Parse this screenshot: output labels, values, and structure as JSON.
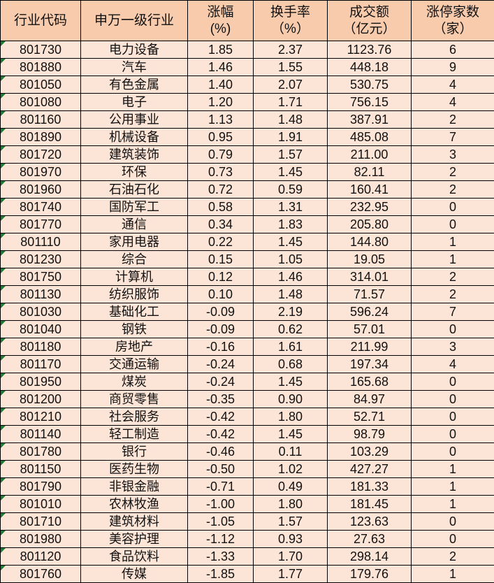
{
  "headers": [
    "行业代码",
    "申万一级行业",
    "涨幅\n(%)",
    "换手率\n（%）",
    "成交额\n（亿元）",
    "涨停家数\n（家）"
  ],
  "header_lines": [
    [
      "行业代码"
    ],
    [
      "申万一级行业"
    ],
    [
      "涨幅",
      "(%)"
    ],
    [
      "换手率",
      "（%）"
    ],
    [
      "成交额",
      "（亿元）"
    ],
    [
      "涨停家数",
      "（家）"
    ]
  ],
  "rows": [
    [
      "801730",
      "电力设备",
      "1.85",
      "2.37",
      "1123.76",
      "6"
    ],
    [
      "801880",
      "汽车",
      "1.46",
      "1.55",
      "448.18",
      "9"
    ],
    [
      "801050",
      "有色金属",
      "1.40",
      "2.07",
      "530.75",
      "4"
    ],
    [
      "801080",
      "电子",
      "1.20",
      "1.71",
      "756.15",
      "4"
    ],
    [
      "801160",
      "公用事业",
      "1.13",
      "1.48",
      "387.91",
      "2"
    ],
    [
      "801890",
      "机械设备",
      "0.95",
      "1.91",
      "485.08",
      "7"
    ],
    [
      "801720",
      "建筑装饰",
      "0.79",
      "1.57",
      "211.00",
      "3"
    ],
    [
      "801970",
      "环保",
      "0.73",
      "1.45",
      "82.11",
      "2"
    ],
    [
      "801960",
      "石油石化",
      "0.72",
      "0.59",
      "160.41",
      "2"
    ],
    [
      "801740",
      "国防军工",
      "0.58",
      "1.31",
      "232.95",
      "0"
    ],
    [
      "801770",
      "通信",
      "0.34",
      "1.83",
      "205.80",
      "0"
    ],
    [
      "801110",
      "家用电器",
      "0.22",
      "1.45",
      "144.80",
      "1"
    ],
    [
      "801230",
      "综合",
      "0.15",
      "1.05",
      "19.05",
      "1"
    ],
    [
      "801750",
      "计算机",
      "0.12",
      "1.46",
      "314.01",
      "2"
    ],
    [
      "801130",
      "纺织服饰",
      "0.10",
      "1.48",
      "71.57",
      "2"
    ],
    [
      "801030",
      "基础化工",
      "-0.09",
      "2.19",
      "596.24",
      "7"
    ],
    [
      "801040",
      "钢铁",
      "-0.09",
      "0.62",
      "57.01",
      "0"
    ],
    [
      "801180",
      "房地产",
      "-0.16",
      "1.61",
      "211.99",
      "3"
    ],
    [
      "801170",
      "交通运输",
      "-0.24",
      "0.68",
      "197.34",
      "4"
    ],
    [
      "801950",
      "煤炭",
      "-0.24",
      "1.45",
      "165.68",
      "0"
    ],
    [
      "801200",
      "商贸零售",
      "-0.35",
      "0.90",
      "84.97",
      "0"
    ],
    [
      "801210",
      "社会服务",
      "-0.42",
      "1.80",
      "52.71",
      "0"
    ],
    [
      "801140",
      "轻工制造",
      "-0.42",
      "1.45",
      "98.79",
      "0"
    ],
    [
      "801780",
      "银行",
      "-0.46",
      "0.11",
      "103.29",
      "0"
    ],
    [
      "801150",
      "医药生物",
      "-0.50",
      "1.02",
      "427.27",
      "1"
    ],
    [
      "801790",
      "非银金融",
      "-0.71",
      "0.49",
      "181.33",
      "1"
    ],
    [
      "801010",
      "农林牧渔",
      "-1.00",
      "1.80",
      "181.45",
      "1"
    ],
    [
      "801710",
      "建筑材料",
      "-1.05",
      "1.57",
      "123.63",
      "0"
    ],
    [
      "801980",
      "美容护理",
      "-1.12",
      "0.93",
      "27.63",
      "0"
    ],
    [
      "801120",
      "食品饮料",
      "-1.33",
      "1.70",
      "298.14",
      "2"
    ],
    [
      "801760",
      "传媒",
      "-1.85",
      "1.77",
      "179.76",
      "1"
    ]
  ],
  "colors": {
    "header_bg": "#f8cbad",
    "row_bg": "#fce4d6",
    "marker": "#1e7b34"
  }
}
